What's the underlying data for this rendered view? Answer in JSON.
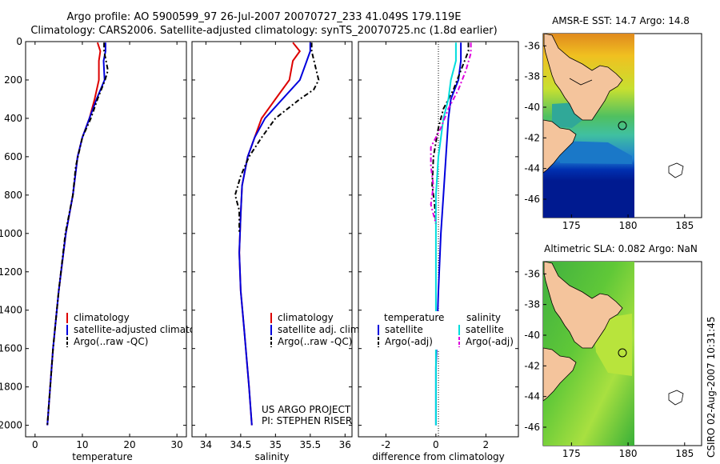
{
  "title_line1": "Argo profile: AO 5900599_97 26-Jul-2007 20070727_233 41.049S 179.119E",
  "title_line2": "Climatology: CARS2006. Satellite-adjusted climatology: synTS_20070725.nc (1.8d earlier)",
  "side_label": "CSIRO 02-Aug-2007 10:31:45",
  "colors": {
    "climatology": "#dd0000",
    "satellite": "#0000dd",
    "argo": "#000000",
    "cyan": "#00dddd",
    "magenta": "#dd00dd"
  },
  "chart_data": [
    {
      "type": "line",
      "id": "temperature",
      "xlabel": "temperature",
      "xlim": [
        -2,
        32
      ],
      "ylim": [
        0,
        2060
      ],
      "y_reversed": true,
      "xticks": [
        0,
        10,
        20,
        30
      ],
      "yticks": [
        0,
        200,
        400,
        600,
        800,
        1000,
        1200,
        1400,
        1600,
        1800,
        2000
      ],
      "legend": [
        "climatology",
        "satellite-adjusted climatology",
        "Argo(..raw -QC)"
      ],
      "series": [
        {
          "name": "climatology",
          "color": "#dd0000",
          "dash": "none",
          "x": [
            13.2,
            13.8,
            13.5,
            13.5,
            12.6,
            11.5,
            10.0,
            9.0,
            8.0,
            6.5,
            5.0,
            3.8,
            2.6
          ],
          "y": [
            5,
            50,
            100,
            200,
            300,
            400,
            500,
            600,
            800,
            1000,
            1300,
            1600,
            2000
          ]
        },
        {
          "name": "satellite-adjusted climatology",
          "color": "#0000dd",
          "dash": "none",
          "x": [
            14.9,
            14.9,
            14.5,
            14.7,
            13.0,
            11.5,
            10.0,
            9.0,
            8.0,
            6.5,
            5.0,
            3.8,
            2.6
          ],
          "y": [
            5,
            50,
            100,
            200,
            300,
            400,
            500,
            600,
            800,
            1000,
            1300,
            1600,
            2000
          ]
        },
        {
          "name": "Argo(..raw -QC)",
          "color": "#000000",
          "dash": "6,3,2,3",
          "x": [
            14.6,
            14.6,
            15.4,
            14.8,
            13.2,
            11.8,
            10.0,
            8.6,
            8.0,
            6.4,
            5.0,
            3.8,
            2.6
          ],
          "y": [
            5,
            50,
            150,
            200,
            300,
            400,
            500,
            650,
            800,
            1000,
            1300,
            1600,
            2000
          ]
        }
      ]
    },
    {
      "type": "line",
      "id": "salinity",
      "xlabel": "salinity",
      "xlim": [
        33.8,
        36.1
      ],
      "ylim": [
        0,
        2060
      ],
      "y_reversed": true,
      "xticks": [
        34,
        34.5,
        35,
        35.5,
        36
      ],
      "yticks": [
        0,
        200,
        400,
        600,
        800,
        1000,
        1200,
        1400,
        1600,
        1800,
        2000
      ],
      "legend": [
        "climatology",
        "satellite adj. clim.",
        "Argo(..raw -QC)"
      ],
      "credit_line1": "US ARGO PROJECT",
      "credit_line2": "PI: STEPHEN RISER",
      "series": [
        {
          "name": "climatology",
          "color": "#dd0000",
          "dash": "none",
          "x": [
            35.25,
            35.35,
            35.25,
            35.2,
            35.0,
            34.8,
            34.7,
            34.6,
            34.52,
            34.5,
            34.48,
            34.5,
            34.55,
            34.62,
            34.66
          ],
          "y": [
            5,
            50,
            100,
            200,
            300,
            400,
            500,
            600,
            750,
            900,
            1100,
            1300,
            1500,
            1800,
            2000
          ]
        },
        {
          "name": "satellite adj. clim.",
          "color": "#0000dd",
          "dash": "none",
          "x": [
            35.5,
            35.5,
            35.45,
            35.35,
            35.1,
            34.85,
            34.7,
            34.6,
            34.52,
            34.5,
            34.48,
            34.5,
            34.55,
            34.62,
            34.66
          ],
          "y": [
            5,
            50,
            100,
            200,
            300,
            400,
            500,
            600,
            750,
            900,
            1100,
            1300,
            1500,
            1800,
            2000
          ]
        },
        {
          "name": "Argo(..raw -QC)",
          "color": "#000000",
          "dash": "6,3,2,3",
          "x": [
            35.52,
            35.52,
            35.62,
            35.55,
            35.35,
            35.0,
            34.8,
            34.62,
            34.5,
            34.42,
            34.48,
            34.48
          ],
          "y": [
            5,
            50,
            200,
            250,
            300,
            400,
            500,
            600,
            700,
            800,
            880,
            1000
          ]
        }
      ]
    },
    {
      "type": "line",
      "id": "difference",
      "xlabel": "difference from climatology",
      "xlim": [
        -3.1,
        3.3
      ],
      "ylim": [
        0,
        2060
      ],
      "y_reversed": true,
      "xticks": [
        -2,
        0,
        2
      ],
      "yticks": [
        0,
        200,
        400,
        600,
        800,
        1000,
        1200,
        1400,
        1600,
        1800,
        2000
      ],
      "legend_temperature_header": "temperature",
      "legend_salinity_header": "salinity",
      "legend": [
        "satellite",
        "Argo(-adj)",
        "satellite",
        "Argo(-adj)"
      ],
      "series": [
        {
          "name": "temperature satellite",
          "color": "#0000dd",
          "dash": "none",
          "x": [
            1.0,
            1.0,
            0.9,
            0.6,
            0.5,
            0.4,
            0.3,
            0.2,
            0.1,
            0.0,
            0.0
          ],
          "y": [
            5,
            100,
            200,
            300,
            400,
            600,
            800,
            1000,
            1300,
            1700,
            2000
          ]
        },
        {
          "name": "temperature Argo(-adj)",
          "color": "#000000",
          "dash": "6,3,2,3",
          "x": [
            1.3,
            1.3,
            1.0,
            0.7,
            0.3,
            0.1,
            -0.1,
            -0.15,
            -0.05,
            0.0
          ],
          "y": [
            5,
            50,
            150,
            250,
            350,
            450,
            600,
            750,
            850,
            950
          ]
        },
        {
          "name": "salinity satellite",
          "color": "#00dddd",
          "dash": "none",
          "x": [
            0.8,
            0.8,
            0.6,
            0.5,
            0.3,
            0.1,
            0.0,
            0.0,
            0.0
          ],
          "y": [
            5,
            100,
            200,
            300,
            400,
            600,
            800,
            1200,
            2000
          ]
        },
        {
          "name": "salinity Argo(-adj)",
          "color": "#dd00dd",
          "dash": "6,3,2,3",
          "x": [
            1.4,
            1.4,
            1.2,
            0.9,
            0.5,
            0.2,
            -0.2,
            -0.2,
            -0.1,
            -0.2,
            0.0
          ],
          "y": [
            5,
            60,
            150,
            250,
            350,
            450,
            550,
            650,
            750,
            850,
            950
          ]
        }
      ]
    },
    {
      "type": "heatmap",
      "id": "sst-map",
      "title": "AMSR-E SST: 14.7 Argo: 14.8",
      "xticks": [
        175,
        180,
        185
      ],
      "yticks": [
        -36,
        -38,
        -40,
        -42,
        -44,
        -46
      ],
      "xlim": [
        172.5,
        186.5
      ],
      "ylim": [
        -47.2,
        -35.2
      ],
      "data_extent_lon": [
        172.5,
        180
      ],
      "profile_location": {
        "lon": 179.119,
        "lat": -41.049
      }
    },
    {
      "type": "heatmap",
      "id": "sla-map",
      "title": "Altimetric SLA: 0.082 Argo: NaN",
      "xticks": [
        175,
        180,
        185
      ],
      "yticks": [
        -36,
        -38,
        -40,
        -42,
        -44,
        -46
      ],
      "xlim": [
        172.5,
        186.5
      ],
      "ylim": [
        -47.2,
        -35.2
      ],
      "data_extent_lon": [
        172.5,
        180
      ],
      "profile_location": {
        "lon": 179.119,
        "lat": -41.049
      }
    }
  ]
}
